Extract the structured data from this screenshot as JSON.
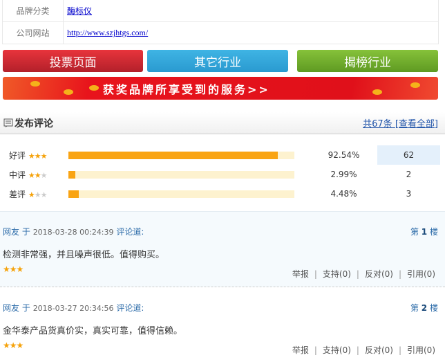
{
  "info": {
    "brand_category_label": "品牌分类",
    "brand_category_value": "酶标仪",
    "website_label": "公司网站",
    "website_value": "http://www.szjhtgs.com/"
  },
  "buttons": {
    "vote": "投票页面",
    "other": "其它行业",
    "ranking": "揭榜行业"
  },
  "banner": {
    "text": "获奖品牌所享受到的服务>>"
  },
  "section": {
    "title": "发布评论",
    "total": "共67条",
    "view_all": "[查看全部]"
  },
  "ratings": [
    {
      "label": "好评",
      "stars": 3,
      "percent": "92.54%",
      "fraction": 0.9254,
      "count": "62"
    },
    {
      "label": "中评",
      "stars": 2,
      "percent": "2.99%",
      "fraction": 0.0299,
      "count": "2"
    },
    {
      "label": "差评",
      "stars": 1,
      "percent": "4.48%",
      "fraction": 0.0448,
      "count": "3"
    }
  ],
  "comments": [
    {
      "user": "网友",
      "yu": "于",
      "time": "2018-03-28 00:24:39",
      "said": "评论道:",
      "floor_pre": "第",
      "floor": "1",
      "floor_post": "楼",
      "text": "检测非常强，并且噪声很低。值得购买。",
      "stars": "★★★",
      "report": "举报",
      "support": "支持(0)",
      "oppose": "反对(0)",
      "quote": "引用(0)"
    },
    {
      "user": "网友",
      "yu": "于",
      "time": "2018-03-27 20:34:56",
      "said": "评论道:",
      "floor_pre": "第",
      "floor": "2",
      "floor_post": "楼",
      "text": "金华泰产品货真价实，真实可靠，值得信赖。",
      "stars": "★★★",
      "report": "举报",
      "support": "支持(0)",
      "oppose": "反对(0)",
      "quote": "引用(0)"
    }
  ],
  "colors": {
    "accent": "#f9a413",
    "link": "#0000cc",
    "comment_meta": "#2a6aa8"
  }
}
